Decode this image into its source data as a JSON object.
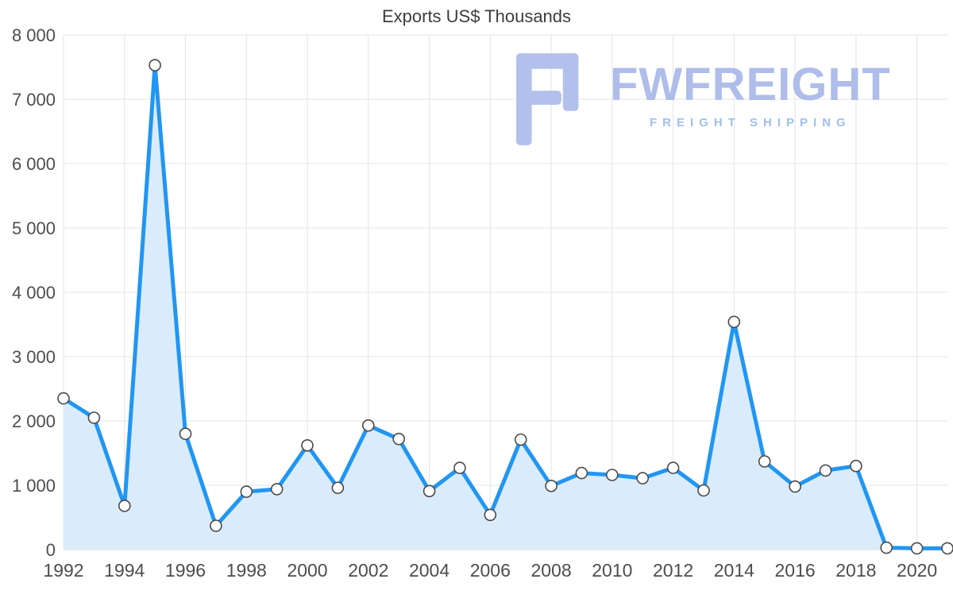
{
  "chart_data": {
    "type": "area",
    "title": "Exports US$ Thousands",
    "xlabel": "",
    "ylabel": "",
    "ylim": [
      0,
      8000
    ],
    "grid": true,
    "legend": "none",
    "x": [
      1992,
      1993,
      1994,
      1995,
      1996,
      1997,
      1998,
      1999,
      2000,
      2001,
      2002,
      2003,
      2004,
      2005,
      2006,
      2007,
      2008,
      2009,
      2010,
      2011,
      2012,
      2013,
      2014,
      2015,
      2016,
      2017,
      2018,
      2019,
      2020,
      2021
    ],
    "values": [
      2350,
      2050,
      680,
      7530,
      1800,
      370,
      900,
      940,
      1620,
      960,
      1930,
      1720,
      910,
      1270,
      540,
      1710,
      990,
      1190,
      1160,
      1110,
      1270,
      920,
      3540,
      1370,
      980,
      1230,
      1300,
      30,
      20,
      20
    ],
    "x_ticks": [
      1992,
      1994,
      1996,
      1998,
      2000,
      2002,
      2004,
      2006,
      2008,
      2010,
      2012,
      2014,
      2016,
      2018,
      2020
    ],
    "y_ticks": [
      {
        "value": 0,
        "label": "0"
      },
      {
        "value": 1000,
        "label": "1 000"
      },
      {
        "value": 2000,
        "label": "2 000"
      },
      {
        "value": 3000,
        "label": "3 000"
      },
      {
        "value": 4000,
        "label": "4 000"
      },
      {
        "value": 5000,
        "label": "5 000"
      },
      {
        "value": 6000,
        "label": "6 000"
      },
      {
        "value": 7000,
        "label": "7 000"
      },
      {
        "value": 8000,
        "label": "8 000"
      }
    ],
    "colors": {
      "line": "#2196f3",
      "fill": "#daecfb",
      "marker_stroke": "#4a4a4a"
    }
  },
  "watermark": {
    "brand": "FWFREIGHT",
    "tagline": "FREIGHT SHIPPING",
    "brand_color": "#aebdea",
    "tagline_color": "#9fbfed",
    "logo_color": "#b1c1ec"
  }
}
